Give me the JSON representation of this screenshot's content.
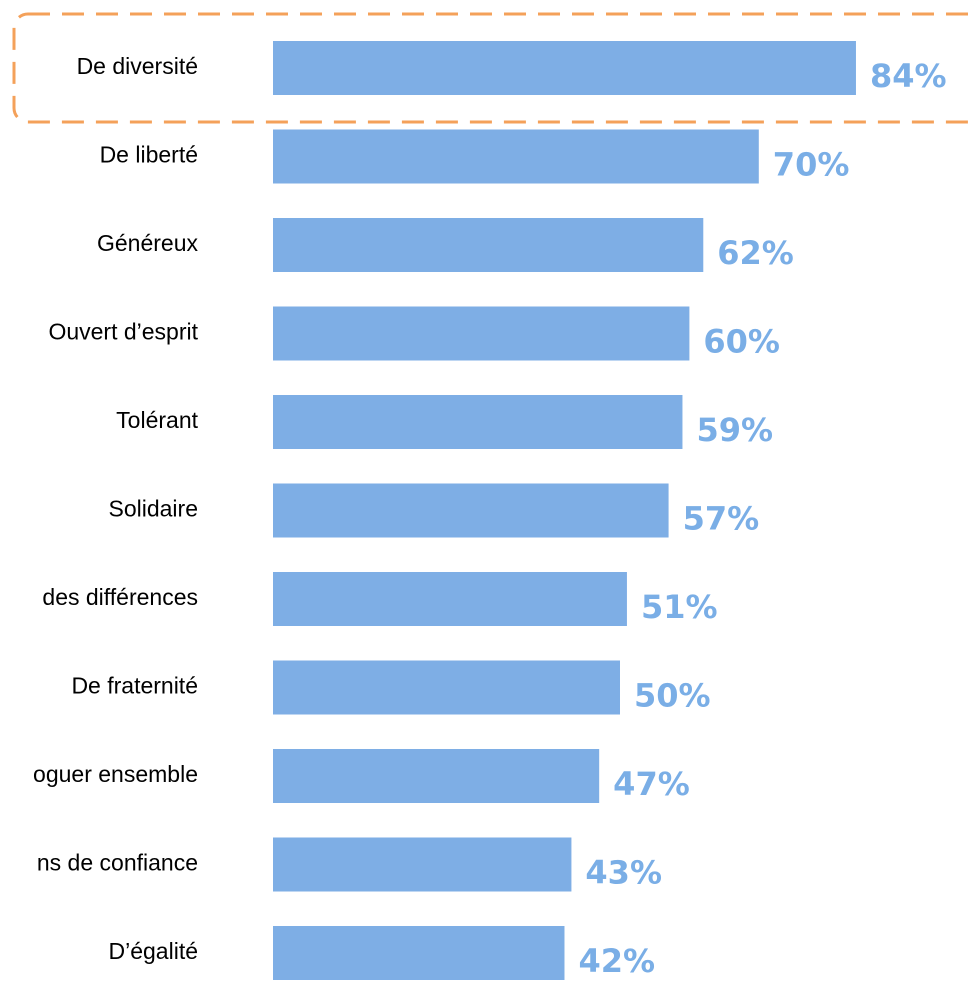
{
  "chart_data": {
    "type": "barh",
    "categories": [
      "De diversité",
      "De liberté",
      "Généreux",
      "Ouvert d’esprit",
      "Tolérant",
      "Solidaire",
      "des différences",
      "De fraternité",
      "oguer ensemble",
      "ns de confiance",
      "D’égalité"
    ],
    "values": [
      84,
      70,
      62,
      60,
      59,
      57,
      51,
      50,
      47,
      43,
      42
    ],
    "value_labels": [
      "84%",
      "70%",
      "62%",
      "60%",
      "59%",
      "57%",
      "51%",
      "50%",
      "47%",
      "43%",
      "42%"
    ],
    "color": "#7eaee5",
    "label_color": "#7aaee6"
  }
}
